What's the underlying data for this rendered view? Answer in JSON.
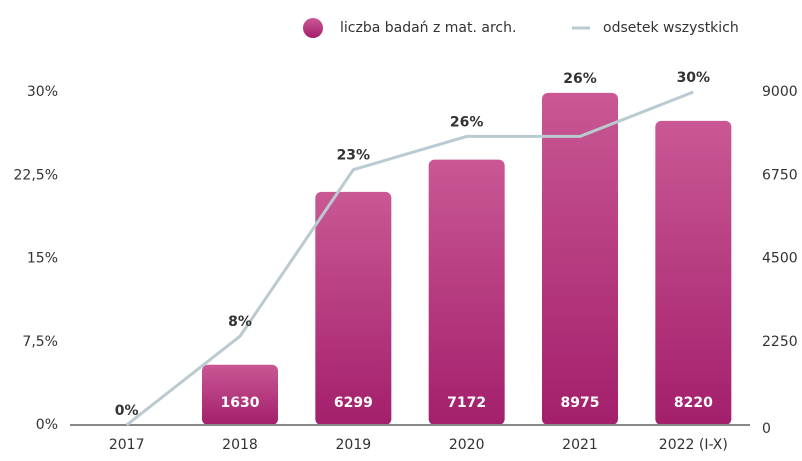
{
  "chart_data": {
    "type": "bar",
    "categories": [
      "2017",
      "2018",
      "2019",
      "2020",
      "2021",
      "2022 (I-X)"
    ],
    "series": [
      {
        "name": "liczba badań z mat. arch.",
        "type": "bar",
        "axis": "y2",
        "color": "#b32a78",
        "values": [
          null,
          1630,
          6299,
          7172,
          8975,
          8220
        ]
      },
      {
        "name": "odsetek wszystkich",
        "type": "line",
        "axis": "y",
        "color": "#b9cbd1",
        "values": [
          0,
          8,
          23,
          26,
          26,
          30
        ],
        "value_labels": [
          "0%",
          "8%",
          "23%",
          "26%",
          "26%",
          "30%"
        ]
      }
    ],
    "ylim": [
      0,
      30
    ],
    "yticks": [
      {
        "value": 0,
        "label": "0%"
      },
      {
        "value": 7.5,
        "label": "7,5%"
      },
      {
        "value": 15,
        "label": "15%"
      },
      {
        "value": 22.5,
        "label": "22,5%"
      },
      {
        "value": 30,
        "label": "30%"
      }
    ],
    "y2lim": [
      0,
      9000
    ],
    "y2ticks": [
      0,
      2250,
      4500,
      6750,
      9000
    ],
    "grid": false
  }
}
